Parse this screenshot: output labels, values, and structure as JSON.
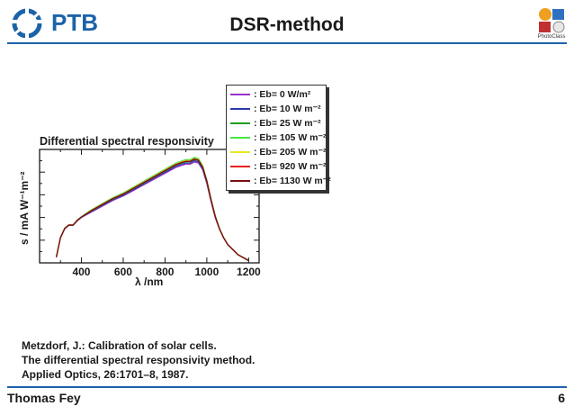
{
  "header": {
    "logo_text": "PTB",
    "title": "DSR-method",
    "badge_text": "PhotoClass"
  },
  "footer": {
    "author": "Thomas Fey",
    "page_number": "6"
  },
  "reference": {
    "line1": "Metzdorf, J.: Calibration of solar cells.",
    "line2": "The differential spectral responsivity method.",
    "line3": "Applied Optics, 26:1701–8, 1987."
  },
  "chart_data": {
    "type": "line",
    "title": "Differential spectral responsivity",
    "xlabel": "λ /nm",
    "ylabel": "s / mA W⁻¹m⁻²",
    "xlim": [
      200,
      1250
    ],
    "x_ticks": [
      400,
      600,
      800,
      1000,
      1200
    ],
    "y_tick_labels_shown": false,
    "grid": false,
    "legend_position": "top-right",
    "series": [
      {
        "name": ": Eb= 0 W/m²",
        "color": "#9b30c8",
        "scale": 1.0
      },
      {
        "name": ": Eb= 10 W m⁻²",
        "color": "#2b3bb0",
        "scale": 1.012
      },
      {
        "name": ": Eb= 25 W m⁻²",
        "color": "#20a020",
        "scale": 1.025
      },
      {
        "name": ": Eb= 105 W m⁻²",
        "color": "#44e844",
        "scale": 1.045
      },
      {
        "name": ": Eb= 205 W m⁻²",
        "color": "#e8e820",
        "scale": 1.035
      },
      {
        "name": ": Eb= 920 W m⁻²",
        "color": "#e82020",
        "scale": 1.03
      },
      {
        "name": ": Eb= 1130 W m⁻²",
        "color": "#7a1010",
        "scale": 1.028
      }
    ],
    "base_curve": {
      "x": [
        280,
        300,
        320,
        340,
        360,
        380,
        400,
        450,
        500,
        550,
        600,
        650,
        700,
        750,
        800,
        850,
        880,
        900,
        920,
        940,
        960,
        980,
        1000,
        1020,
        1040,
        1060,
        1080,
        1100,
        1150,
        1200
      ],
      "y": [
        0.05,
        0.22,
        0.3,
        0.33,
        0.33,
        0.37,
        0.4,
        0.45,
        0.5,
        0.55,
        0.59,
        0.64,
        0.69,
        0.74,
        0.79,
        0.84,
        0.86,
        0.87,
        0.87,
        0.89,
        0.88,
        0.82,
        0.7,
        0.54,
        0.4,
        0.3,
        0.22,
        0.16,
        0.07,
        0.02
      ]
    },
    "ylim": [
      0,
      1.0
    ]
  }
}
